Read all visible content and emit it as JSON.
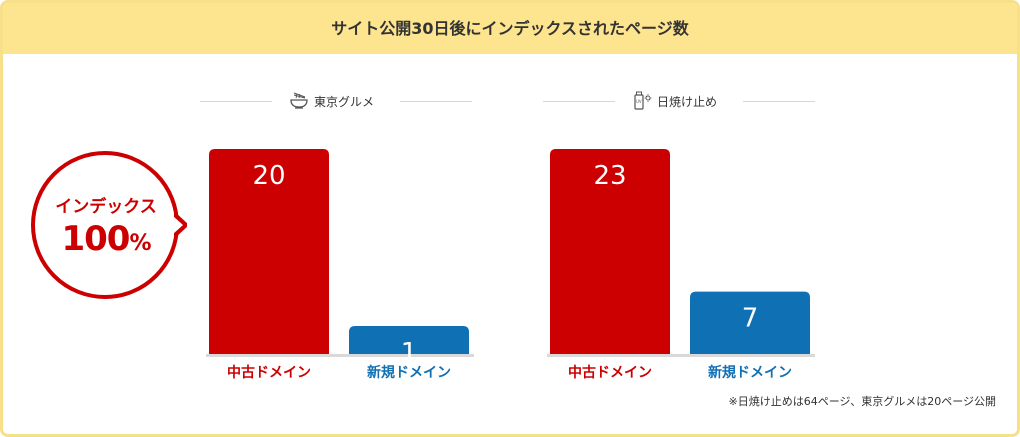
{
  "header": {
    "title": "サイト公開30日後にインデックスされたページ数"
  },
  "badge": {
    "line1": "インデックス",
    "line2": "100",
    "unit": "%"
  },
  "colors": {
    "old_domain": "#cc0000",
    "new_domain": "#1070b4",
    "header_bg": "#fde48f",
    "border": "#f7e08a"
  },
  "panels": [
    {
      "label": "東京グルメ",
      "icon": "ramen-bowl-icon"
    },
    {
      "label": "日焼け止め",
      "icon": "sunscreen-icon"
    }
  ],
  "chart_data": [
    {
      "type": "bar",
      "title": "東京グルメ",
      "categories": [
        "中古ドメイン",
        "新規ドメイン"
      ],
      "values": [
        20,
        1
      ],
      "ylim": [
        0,
        20
      ]
    },
    {
      "type": "bar",
      "title": "日焼け止め",
      "categories": [
        "中古ドメイン",
        "新規ドメイン"
      ],
      "values": [
        23,
        7
      ],
      "ylim": [
        0,
        23
      ]
    }
  ],
  "footnote": "※日焼け止めは64ページ、東京グルメは20ページ公開"
}
